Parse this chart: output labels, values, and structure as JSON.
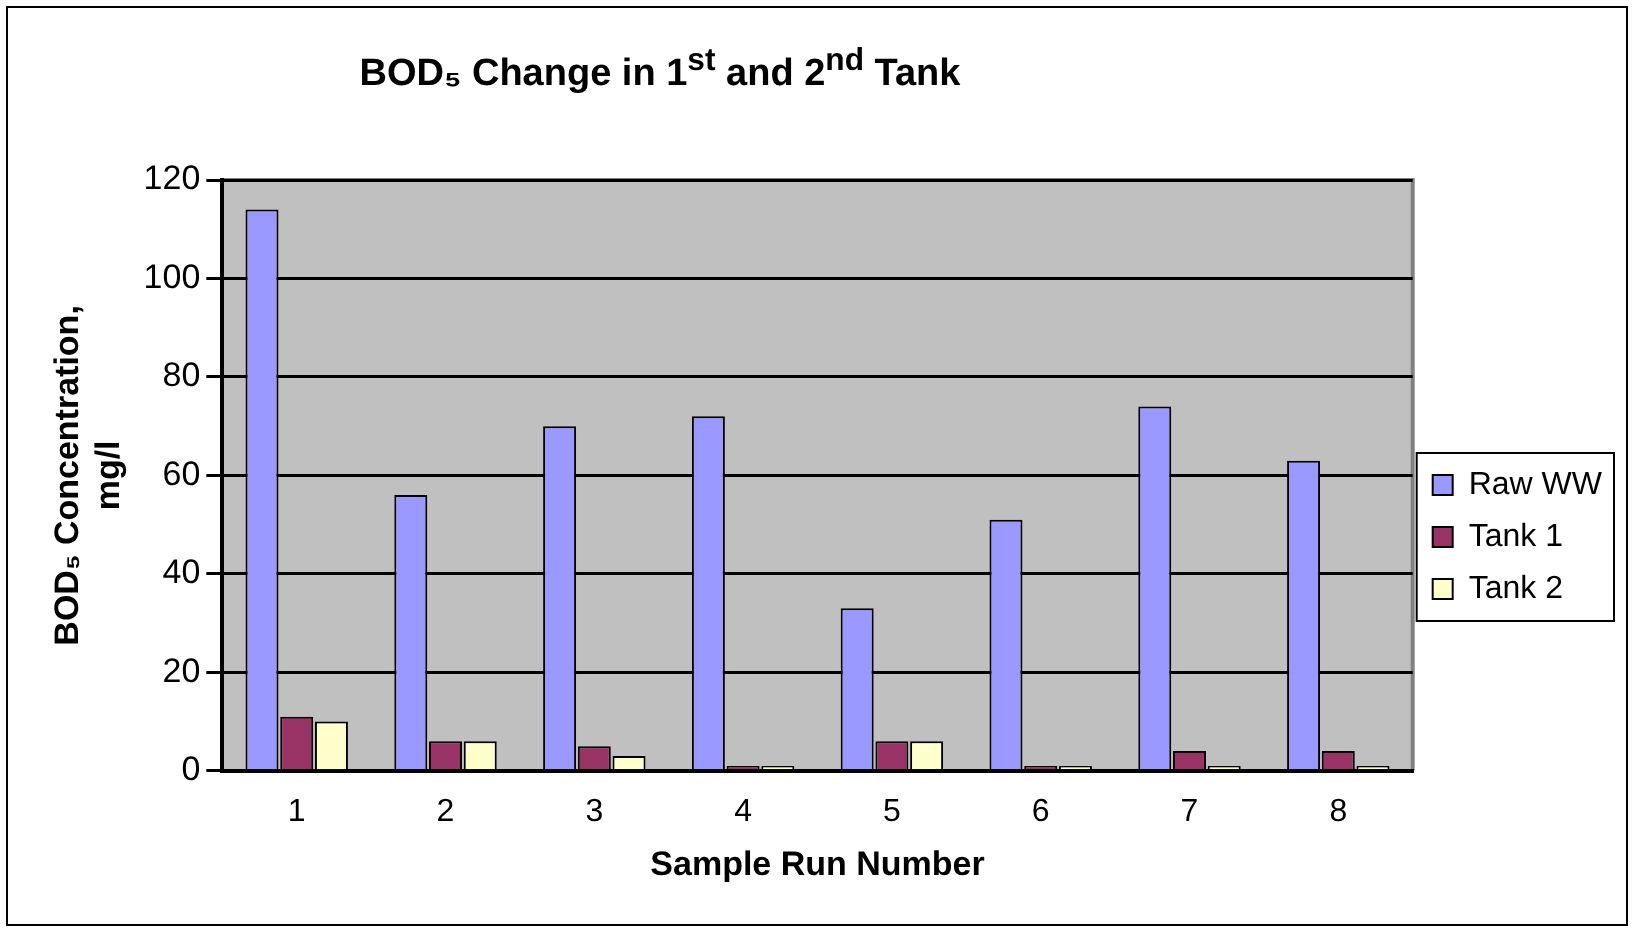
{
  "chart_data": {
    "type": "bar",
    "title": "BOD₅ Change in 1$^{st}$ and 2$^{nd}$ Tank",
    "xlabel": "Sample Run Number",
    "ylabel": "BOD₅ Concentration, mg/l",
    "categories": [
      "1",
      "2",
      "3",
      "4",
      "5",
      "6",
      "7",
      "8"
    ],
    "series": [
      {
        "name": "Raw WW",
        "color": "#9999ff",
        "values": [
          114,
          56,
          70,
          72,
          33,
          51,
          74,
          63
        ]
      },
      {
        "name": "Tank 1",
        "color": "#993366",
        "values": [
          11,
          6,
          5,
          1,
          6,
          1,
          4,
          4
        ]
      },
      {
        "name": "Tank 2",
        "color": "#ffffcc",
        "values": [
          10,
          6,
          3,
          1,
          6,
          1,
          1,
          1
        ]
      }
    ],
    "ylim": [
      0,
      120
    ],
    "yticks": [
      0,
      20,
      40,
      60,
      80,
      100,
      120
    ],
    "grid": "y",
    "legend": "right"
  }
}
